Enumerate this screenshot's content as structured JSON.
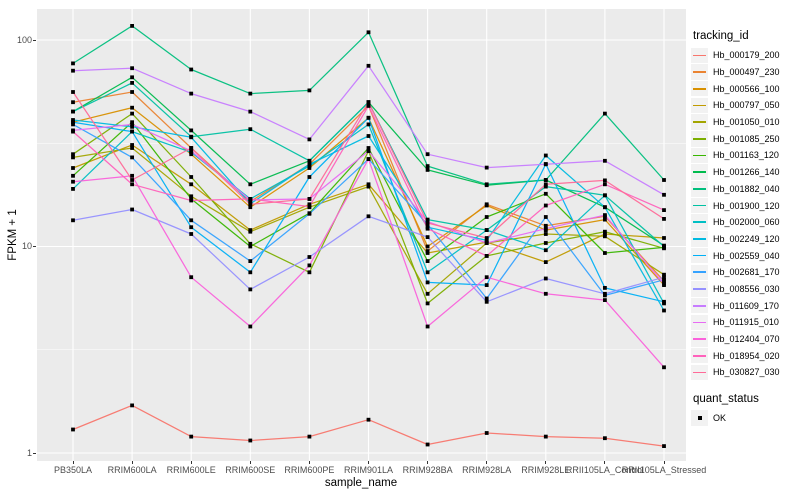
{
  "chart_data": {
    "type": "line",
    "title": "",
    "xlabel": "sample_name",
    "ylabel": "FPKM + 1",
    "y_scale": "log10",
    "y_ticks": [
      1,
      10,
      100
    ],
    "y_minor_ticks": [
      3.1623,
      31.623
    ],
    "ylim": [
      0.9,
      140
    ],
    "grid": "on",
    "legend_position": "right",
    "legend": {
      "color_title": "tracking_id",
      "shape_title": "quant_status",
      "shape_items": [
        "OK"
      ]
    },
    "point_style": {
      "shape": "square",
      "color": "#000000"
    },
    "categories": [
      "PB350LA",
      "RRIM600LA",
      "RRIM600LE",
      "RRIM600SE",
      "RRIM600PE",
      "RRIM901LA",
      "RRIM928BA",
      "RRIM928LA",
      "RRIM928LE",
      "RRII105LA_Control",
      "RRII105LA_Stressed"
    ],
    "series": [
      {
        "name": "Hb_000179_200",
        "color": "#F8766D",
        "values": [
          1.3,
          1.7,
          1.2,
          1.15,
          1.2,
          1.45,
          1.1,
          1.25,
          1.2,
          1.18,
          1.08
        ]
      },
      {
        "name": "Hb_000497_230",
        "color": "#EA8331",
        "values": [
          50,
          56,
          30,
          16.5,
          25,
          48,
          9.5,
          16,
          12.6,
          14,
          6.8
        ]
      },
      {
        "name": "Hb_000566_100",
        "color": "#D89000",
        "values": [
          40,
          47,
          28,
          15.5,
          24,
          42,
          10,
          15.8,
          12,
          13.5,
          6.5
        ]
      },
      {
        "name": "Hb_000797_050",
        "color": "#C09B00",
        "values": [
          24,
          31,
          20,
          12,
          16,
          20,
          9.3,
          10.5,
          8.4,
          11.5,
          11
        ]
      },
      {
        "name": "Hb_001050_010",
        "color": "#A3A500",
        "values": [
          27,
          30,
          17.5,
          11.8,
          15.5,
          19.5,
          5.9,
          10.4,
          11.5,
          11.2,
          7.3
        ]
      },
      {
        "name": "Hb_001085_250",
        "color": "#7CAE00",
        "values": [
          28,
          44,
          21.7,
          10.3,
          7.5,
          29,
          5.3,
          9,
          10.4,
          11.8,
          9.8
        ]
      },
      {
        "name": "Hb_001163_120",
        "color": "#39B600",
        "values": [
          22,
          40,
          17,
          10,
          14.5,
          30,
          8.5,
          13.9,
          18,
          9.3,
          9.9
        ]
      },
      {
        "name": "Hb_001266_140",
        "color": "#00BB4E",
        "values": [
          45,
          66,
          36.5,
          20,
          26,
          50,
          23.5,
          19.8,
          21,
          15.5,
          10.1
        ]
      },
      {
        "name": "Hb_001882_040",
        "color": "#00BF7D",
        "values": [
          77,
          117,
          72,
          55,
          57,
          109,
          24.5,
          20,
          21,
          44,
          21
        ]
      },
      {
        "name": "Hb_001900_120",
        "color": "#00C1A3",
        "values": [
          45,
          62,
          34,
          37,
          26,
          50,
          13.5,
          12,
          19.5,
          17.7,
          10
        ]
      },
      {
        "name": "Hb_002000_060",
        "color": "#00BFC4",
        "values": [
          19,
          36,
          28.6,
          17,
          24.5,
          39,
          7.5,
          12,
          9.6,
          17.7,
          5.3
        ]
      },
      {
        "name": "Hb_002249_120",
        "color": "#00BAE0",
        "values": [
          41,
          38,
          33.8,
          16.1,
          25,
          34.3,
          12.4,
          10.7,
          27.6,
          15.5,
          4.9
        ]
      },
      {
        "name": "Hb_002559_040",
        "color": "#00B0F6",
        "values": [
          40,
          36,
          12.4,
          7.5,
          21.7,
          42,
          6.7,
          6.5,
          25.1,
          6.3,
          5.4
        ]
      },
      {
        "name": "Hb_002681_170",
        "color": "#35A2FF",
        "values": [
          39,
          27,
          13.4,
          8.5,
          14.4,
          26.5,
          12.8,
          5.6,
          13.9,
          5.8,
          6.9
        ]
      },
      {
        "name": "Hb_008556_030",
        "color": "#9590FF",
        "values": [
          13.4,
          15.1,
          11.5,
          6.2,
          8.9,
          14,
          11.1,
          5.4,
          7,
          5.9,
          7.1
        ]
      },
      {
        "name": "Hb_011609_170",
        "color": "#C77CFF",
        "values": [
          71,
          73,
          55,
          45,
          33,
          75,
          28,
          24.1,
          25,
          26,
          17.8
        ]
      },
      {
        "name": "Hb_011915_010",
        "color": "#E76BF3",
        "values": [
          36.5,
          39,
          29,
          16.8,
          17,
          29,
          13.2,
          10.4,
          12.2,
          14.2,
          6.6
        ]
      },
      {
        "name": "Hb_012404_070",
        "color": "#FA62DB",
        "values": [
          20.6,
          22,
          7.1,
          4.1,
          8.1,
          26.5,
          4.1,
          7.1,
          5.9,
          5.5,
          2.6
        ]
      },
      {
        "name": "Hb_018954_020",
        "color": "#FF62BC",
        "values": [
          36,
          20,
          16.7,
          17,
          15.6,
          48,
          12.2,
          9,
          15.8,
          20,
          15
        ]
      },
      {
        "name": "Hb_030827_030",
        "color": "#FF6A98",
        "values": [
          56,
          21,
          30,
          16,
          17,
          50,
          13,
          11,
          20,
          20.9,
          13.6
        ]
      }
    ],
    "colors": {
      "panel_background": "#EBEBEB",
      "gridline": "#FFFFFF",
      "tick_label": "#4D4D4D",
      "axis_title": "#000000",
      "legend_key_background": "#F2F2F2",
      "point": "#000000"
    }
  }
}
